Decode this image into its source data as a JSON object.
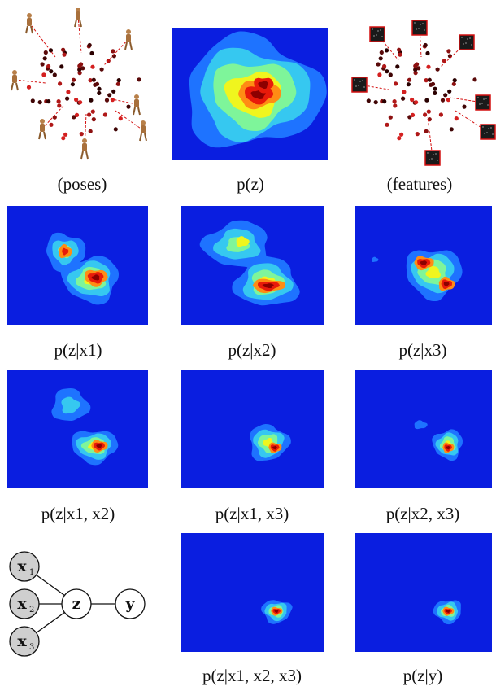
{
  "figure": {
    "captions": {
      "poses": "(poses)",
      "pz": "p(z)",
      "features": "(features)",
      "px1": "p(z|x1)",
      "px2": "p(z|x2)",
      "px3": "p(z|x3)",
      "px12": "p(z|x1, x2)",
      "px13": "p(z|x1, x3)",
      "px23": "p(z|x2, x3)",
      "px123": "p(z|x1, x2, x3)",
      "py": "p(z|y)"
    },
    "graph": {
      "nodes": [
        "x1",
        "x2",
        "x3",
        "z",
        "y"
      ]
    },
    "colors": {
      "background_blue": "#0a1ee0",
      "level1": "#1e73ff",
      "level2": "#36c8f0",
      "level3": "#7ef59a",
      "level4": "#f0f51e",
      "level5": "#ff8c14",
      "level6": "#e81a0a",
      "level7": "#8c0000",
      "node_gray": "#cfcfcf"
    }
  }
}
